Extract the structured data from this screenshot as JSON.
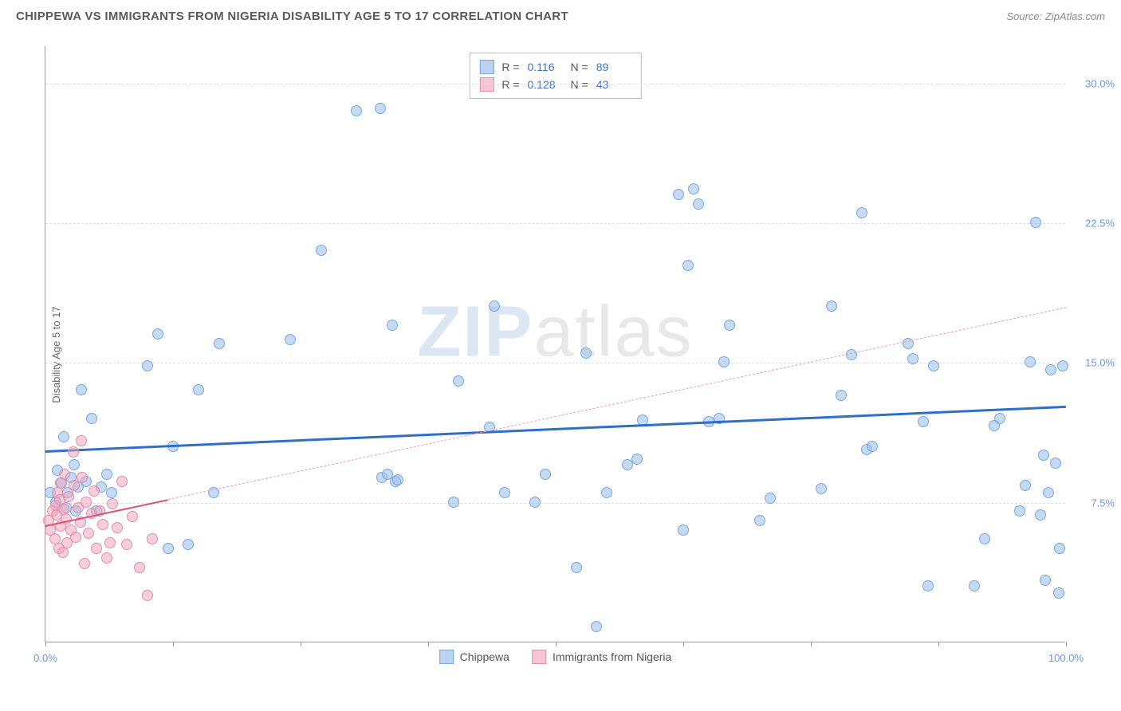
{
  "header": {
    "title": "CHIPPEWA VS IMMIGRANTS FROM NIGERIA DISABILITY AGE 5 TO 17 CORRELATION CHART",
    "source": "Source: ZipAtlas.com"
  },
  "chart": {
    "type": "scatter",
    "y_axis_label": "Disability Age 5 to 17",
    "watermark": {
      "part1": "ZIP",
      "part2": "atlas"
    },
    "xlim": [
      0,
      100
    ],
    "ylim": [
      0,
      32
    ],
    "x_ticks": [
      0,
      12.5,
      25,
      37.5,
      50,
      62.5,
      75,
      87.5,
      100
    ],
    "x_tick_labels": {
      "0": "0.0%",
      "100": "100.0%"
    },
    "y_gridlines": [
      7.5,
      15.0,
      22.5,
      30.0
    ],
    "y_tick_labels": {
      "7.5": "7.5%",
      "15.0": "15.0%",
      "22.5": "22.5%",
      "30.0": "30.0%"
    },
    "background_color": "#ffffff",
    "grid_color": "#dddddd",
    "axis_color": "#999999",
    "marker_radius": 7,
    "legend_top": {
      "rows": [
        {
          "swatch_fill": "#b9d3f0",
          "swatch_border": "#7aa7dd",
          "r_label": "R =",
          "r_value": "0.116",
          "n_label": "N =",
          "n_value": "89"
        },
        {
          "swatch_fill": "#f6c6d5",
          "swatch_border": "#e58ca9",
          "r_label": "R =",
          "r_value": "0.128",
          "n_label": "N =",
          "n_value": "43"
        }
      ]
    },
    "legend_bottom": {
      "items": [
        {
          "swatch_fill": "#b9d3f0",
          "swatch_border": "#7aa7dd",
          "label": "Chippewa"
        },
        {
          "swatch_fill": "#f6c6d5",
          "swatch_border": "#e58ca9",
          "label": "Immigrants from Nigeria"
        }
      ]
    },
    "series": [
      {
        "name": "Chippewa",
        "marker_fill": "rgba(150,190,235,0.55)",
        "marker_border": "#7aa7dd",
        "regression": {
          "x1": 0,
          "y1": 10.3,
          "x2": 100,
          "y2": 12.7,
          "color": "#2f6fc8",
          "width": 2.5
        },
        "points": [
          [
            0.5,
            8.0
          ],
          [
            1.0,
            7.5
          ],
          [
            1.2,
            9.2
          ],
          [
            1.5,
            8.5
          ],
          [
            1.8,
            11.0
          ],
          [
            2.0,
            7.2
          ],
          [
            2.2,
            8.0
          ],
          [
            2.5,
            8.8
          ],
          [
            2.8,
            9.5
          ],
          [
            3.0,
            7.0
          ],
          [
            3.2,
            8.3
          ],
          [
            3.5,
            13.5
          ],
          [
            4.0,
            8.6
          ],
          [
            4.5,
            12.0
          ],
          [
            5.0,
            7.0
          ],
          [
            5.5,
            8.3
          ],
          [
            6.0,
            9.0
          ],
          [
            6.5,
            8.0
          ],
          [
            10.0,
            14.8
          ],
          [
            11.0,
            16.5
          ],
          [
            12.0,
            5.0
          ],
          [
            12.5,
            10.5
          ],
          [
            14.0,
            5.2
          ],
          [
            15.0,
            13.5
          ],
          [
            16.5,
            8.0
          ],
          [
            17.0,
            16.0
          ],
          [
            24.0,
            16.2
          ],
          [
            27.0,
            21.0
          ],
          [
            30.5,
            28.5
          ],
          [
            32.8,
            28.6
          ],
          [
            33.0,
            8.8
          ],
          [
            33.5,
            9.0
          ],
          [
            34.0,
            17.0
          ],
          [
            34.3,
            8.6
          ],
          [
            34.5,
            8.7
          ],
          [
            40.0,
            7.5
          ],
          [
            40.5,
            14.0
          ],
          [
            43.5,
            11.5
          ],
          [
            44.0,
            18.0
          ],
          [
            45.0,
            8.0
          ],
          [
            48.0,
            7.5
          ],
          [
            49.0,
            9.0
          ],
          [
            52.0,
            4.0
          ],
          [
            53.0,
            15.5
          ],
          [
            54.0,
            0.8
          ],
          [
            55.0,
            8.0
          ],
          [
            57.0,
            9.5
          ],
          [
            58.0,
            9.8
          ],
          [
            58.5,
            11.9
          ],
          [
            62.0,
            24.0
          ],
          [
            62.5,
            6.0
          ],
          [
            63.0,
            20.2
          ],
          [
            63.5,
            24.3
          ],
          [
            64.0,
            23.5
          ],
          [
            65.0,
            11.8
          ],
          [
            66.0,
            12.0
          ],
          [
            66.5,
            15.0
          ],
          [
            67.0,
            17.0
          ],
          [
            70.0,
            6.5
          ],
          [
            71.0,
            7.7
          ],
          [
            76.0,
            8.2
          ],
          [
            77.0,
            18.0
          ],
          [
            78.0,
            13.2
          ],
          [
            79.0,
            15.4
          ],
          [
            80.0,
            23.0
          ],
          [
            80.5,
            10.3
          ],
          [
            81.0,
            10.5
          ],
          [
            84.5,
            16.0
          ],
          [
            85.0,
            15.2
          ],
          [
            86.0,
            11.8
          ],
          [
            86.5,
            3.0
          ],
          [
            87.0,
            14.8
          ],
          [
            91.0,
            3.0
          ],
          [
            92.0,
            5.5
          ],
          [
            93.0,
            11.6
          ],
          [
            93.5,
            12.0
          ],
          [
            95.5,
            7.0
          ],
          [
            96.0,
            8.4
          ],
          [
            96.5,
            15.0
          ],
          [
            97.0,
            22.5
          ],
          [
            97.5,
            6.8
          ],
          [
            97.8,
            10.0
          ],
          [
            98.0,
            3.3
          ],
          [
            98.3,
            8.0
          ],
          [
            98.5,
            14.6
          ],
          [
            99.0,
            9.6
          ],
          [
            99.3,
            2.6
          ],
          [
            99.4,
            5.0
          ],
          [
            99.7,
            14.8
          ]
        ]
      },
      {
        "name": "Immigrants from Nigeria",
        "marker_fill": "rgba(240,160,185,0.50)",
        "marker_border": "#e58ca9",
        "regression": {
          "x1": 0,
          "y1": 6.3,
          "x2": 12,
          "y2": 7.7,
          "color": "#d9537b",
          "width": 2.2
        },
        "regression_extrapolate": {
          "x1": 12,
          "y1": 7.7,
          "x2": 100,
          "y2": 18.0,
          "color": "#e9a0b5"
        },
        "points": [
          [
            0.3,
            6.5
          ],
          [
            0.5,
            6.0
          ],
          [
            0.7,
            7.0
          ],
          [
            0.9,
            5.5
          ],
          [
            1.0,
            7.3
          ],
          [
            1.1,
            6.8
          ],
          [
            1.2,
            8.0
          ],
          [
            1.3,
            5.0
          ],
          [
            1.4,
            7.6
          ],
          [
            1.5,
            6.2
          ],
          [
            1.6,
            8.5
          ],
          [
            1.7,
            4.8
          ],
          [
            1.8,
            7.1
          ],
          [
            1.9,
            9.0
          ],
          [
            2.0,
            6.6
          ],
          [
            2.1,
            5.3
          ],
          [
            2.3,
            7.8
          ],
          [
            2.5,
            6.0
          ],
          [
            2.8,
            8.4
          ],
          [
            2.7,
            10.2
          ],
          [
            3.0,
            5.6
          ],
          [
            3.2,
            7.2
          ],
          [
            3.4,
            6.4
          ],
          [
            3.6,
            8.8
          ],
          [
            3.5,
            10.8
          ],
          [
            3.8,
            4.2
          ],
          [
            4.0,
            7.5
          ],
          [
            4.2,
            5.8
          ],
          [
            4.5,
            6.9
          ],
          [
            4.8,
            8.1
          ],
          [
            5.0,
            5.0
          ],
          [
            5.3,
            7.0
          ],
          [
            5.6,
            6.3
          ],
          [
            6.0,
            4.5
          ],
          [
            6.3,
            5.3
          ],
          [
            6.6,
            7.4
          ],
          [
            7.0,
            6.1
          ],
          [
            7.5,
            8.6
          ],
          [
            8.0,
            5.2
          ],
          [
            8.5,
            6.7
          ],
          [
            9.2,
            4.0
          ],
          [
            10.0,
            2.5
          ],
          [
            10.5,
            5.5
          ]
        ]
      }
    ]
  }
}
